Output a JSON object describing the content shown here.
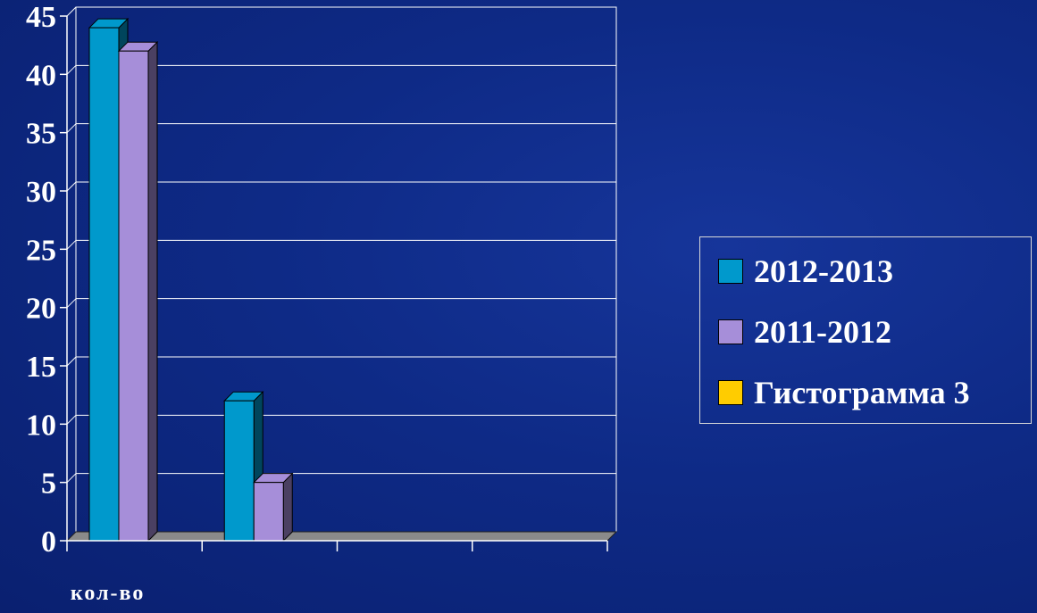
{
  "chart_data": {
    "type": "bar",
    "categories": [
      "кол-во",
      "",
      "",
      ""
    ],
    "series": [
      {
        "name": "2012-2013",
        "values": [
          44,
          12,
          0,
          0
        ],
        "color": "#0099cc"
      },
      {
        "name": "2011-2012",
        "values": [
          42,
          5,
          0,
          0
        ],
        "color": "#a68ed9"
      },
      {
        "name": "Гистограмма 3",
        "values": [
          0,
          0,
          0,
          0
        ],
        "color": "#ffcc00"
      }
    ],
    "ylim": [
      0,
      45
    ],
    "yticks": [
      "0",
      "5",
      "10",
      "15",
      "20",
      "25",
      "30",
      "35",
      "40",
      "45"
    ],
    "grid": true,
    "legend_position": "right"
  }
}
